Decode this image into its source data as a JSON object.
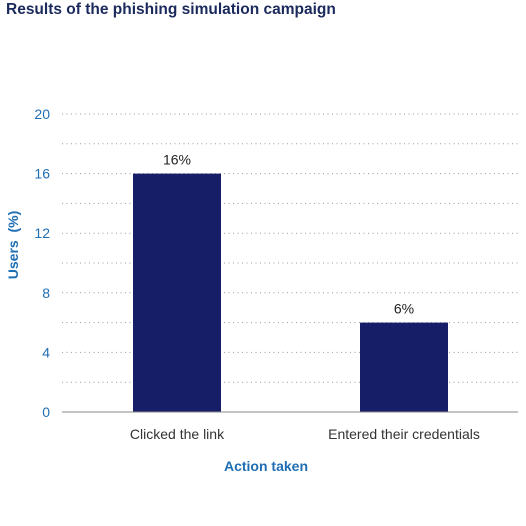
{
  "chart_data": {
    "type": "bar",
    "title": "Results of the phishing simulation campaign",
    "xlabel": "Action taken",
    "ylabel": "Users  (%)",
    "categories": [
      "Clicked the link",
      "Entered their credentials"
    ],
    "values": [
      16,
      6
    ],
    "value_labels": [
      "16%",
      "6%"
    ],
    "ylim": [
      0,
      20
    ],
    "yticks": [
      0,
      4,
      8,
      12,
      16,
      20
    ],
    "grid": "dotted horizontal",
    "bar_color": "#151e66",
    "tick_color": "#1f6eb4"
  }
}
